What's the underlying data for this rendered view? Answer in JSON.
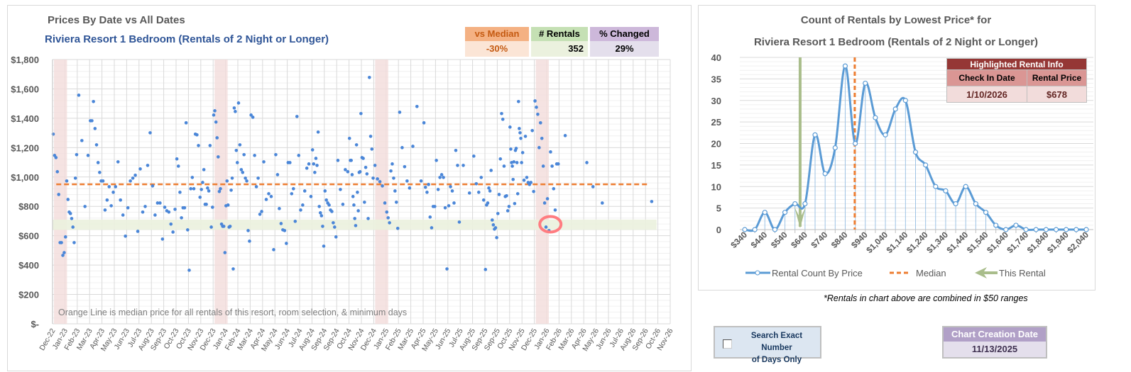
{
  "left_chart": {
    "title": "Prices By Date vs All Dates",
    "subtitle": "Riviera Resort 1 Bedroom (Rentals of 2 Night or Longer)",
    "footnote": "Orange Line is median price for all rentals of this resort, room selection, & minimum days",
    "stats": [
      {
        "label": "vs Median",
        "value": "-30%",
        "header_color": "#F4B183",
        "value_color": "#FBE5D6",
        "text_color": "#C55A11"
      },
      {
        "label": "# Rentals",
        "value": "352",
        "header_color": "#C5E0B4",
        "value_color": "#EBF1DE",
        "text_color": "#000000"
      },
      {
        "label": "% Changed",
        "value": "29%",
        "header_color": "#CDB8DA",
        "value_color": "#E4DFEC",
        "text_color": "#000000"
      }
    ]
  },
  "chart_data": [
    {
      "type": "scatter",
      "title": "Prices By Date vs All Dates",
      "ylim": [
        0,
        1800
      ],
      "y_ticks": [
        "$-",
        "$200",
        "$400",
        "$600",
        "$800",
        "$1,000",
        "$1,200",
        "$1,400",
        "$1,600",
        "$1,800"
      ],
      "x_ticks": [
        "Dec-22",
        "Jan-23",
        "Feb-23",
        "Mar-23",
        "Apr-23",
        "May-23",
        "Jun-23",
        "Jul-23",
        "Aug-23",
        "Sep-23",
        "Oct-23",
        "Oct-23",
        "Nov-23",
        "Dec-23",
        "Jan-24",
        "Feb-24",
        "Mar-24",
        "Apr-24",
        "May-24",
        "Jun-24",
        "Jul-24",
        "Aug-24",
        "Sep-24",
        "Sep-24",
        "Oct-24",
        "Nov-24",
        "Dec-24",
        "Jan-25",
        "Feb-25",
        "Mar-25",
        "Apr-25",
        "May-25",
        "Jun-25",
        "Jul-25",
        "Aug-25",
        "Sep-25",
        "Sep-25",
        "Oct-25",
        "Nov-25",
        "Dec-25",
        "Jan-26",
        "Feb-26",
        "Mar-26",
        "Apr-26",
        "May-26",
        "Jun-26",
        "Jul-26",
        "Aug-26",
        "Sep-26",
        "Oct-26",
        "Nov-26"
      ],
      "grid": true,
      "median_price": 950,
      "highlight_price_band": [
        640,
        710
      ],
      "holiday_bands": [
        [
          "Dec-22",
          "Jan-23"
        ],
        [
          "Dec-23",
          "Jan-24"
        ],
        [
          "Dec-24",
          "Jan-25"
        ],
        [
          "Dec-25",
          "Jan-26"
        ]
      ],
      "highlighted_point": {
        "date": "1/10/2026",
        "price": 678
      },
      "point_color": "#4A86D8",
      "median_color": "#ED7D31",
      "points_by_tick_interval": [
        [
          1292,
          1147,
          1132,
          1036,
          881,
          553,
          553,
          466,
          485
        ],
        [
          592,
          973,
          847,
          761,
          751,
          717,
          659,
          553,
          992,
          1152
        ],
        [
          1557,
          1248,
          799,
          1147
        ],
        [
          1383,
          1383,
          1514,
          1330,
          1219,
          1098,
          1031,
          973
        ],
        [
          973,
          775,
          843,
          934,
          804,
          896
        ],
        [
          934,
          1103,
          843,
          741,
          597
        ],
        [
          790,
          973,
          992,
          1012,
          630
        ],
        [
          1055,
          761,
          799,
          1079,
          1301
        ],
        [
          939,
          741,
          823,
          823,
          577
        ],
        [
          794,
          770,
          761,
          679,
          625,
          780
        ],
        [
          1123,
          1074,
          896,
          722,
          790,
          790,
          1369,
          640
        ],
        [
          365,
          920,
          997,
          920,
          1292,
          1287,
          1214,
          862
        ],
        [
          915,
          963,
          1050,
          814,
          814,
          925,
          905,
          1214,
          659,
          794
        ],
        [
          1422,
          1451,
          1374,
          1267,
          1137,
          901,
          920,
          679,
          664,
          664,
          485
        ],
        [
          804,
          973,
          809,
          659,
          664,
          910,
          992,
          374,
          1470,
          1446,
          1181,
          1098
        ],
        [
          1504,
          1219,
          1050,
          1031,
          1152,
          992,
          973,
          635,
          563
        ],
        [
          1422,
          1407,
          1147,
          934,
          992,
          746,
          765
        ],
        [
          1103,
          847,
          886,
          867,
          505
        ],
        [
          1152,
          1016,
          785,
          683,
          640,
          635,
          548
        ],
        [
          1098,
          1098,
          886,
          920,
          698,
          1412,
          1147
        ],
        [
          775,
          809,
          905,
          1060,
          1089,
          867
        ],
        [
          1185,
          1089,
          1031,
          1127,
          1079,
          1306,
          799,
          756,
          736,
          664,
          529
        ],
        [
          905,
          843,
          823,
          809,
          775,
          765,
          688,
          659,
          592
        ],
        [
          1113,
          915,
          814,
          1050,
          1036
        ],
        [
          1263,
          1113,
          1113,
          1016,
          867,
          809,
          717,
          669,
          1219,
          896,
          770,
          1031,
          1036,
          1432
        ],
        [
          1132,
          1127,
          828,
          1065,
          1021,
          717,
          1678,
          1277,
          1190,
          992
        ],
        [
          1079,
          987,
          968,
          939,
          823
        ],
        [
          761,
          722,
          688,
          1041,
          1089,
          992,
          905,
          828,
          650
        ],
        [
          1441,
          1200,
          1070,
          973,
          925
        ],
        [
          1209,
          1480,
          973
        ],
        [
          1369,
          930,
          896,
          949,
          727,
          654,
          799,
          799
        ],
        [
          1113,
          915,
          997,
          1016,
          997,
          790,
          374
        ],
        [
          804,
          934,
          905,
          823,
          1181,
          1079,
          693
        ],
        [
          1079,
          891
        ],
        [
          1142,
          954,
          896,
          997,
          843
        ],
        [
          370,
          809,
          823,
          925,
          905,
          1045,
          707,
          674,
          645,
          654,
          587
        ],
        [
          751,
          881,
          1123,
          1432,
          1393,
          1074,
          867,
          872,
          770,
          799
        ],
        [
          1340,
          1190,
          1098,
          1074,
          983,
          1103,
          819,
          1181,
          1195,
          1098,
          886,
          1514,
          1330,
          1301,
          1263,
          1098
        ],
        [
          1166,
          978,
          1277,
          997,
          963,
          949,
          963,
          1316,
          901
        ],
        [
          1518,
          1475,
          1427,
          1200,
          1369,
          1263,
          1074,
          823,
          659
        ],
        [
          852,
          635,
          1171,
          1074,
          920,
          775,
          1089,
          1089
        ],
        [
          1282
        ],
        [],
        [
          1098,
          934
        ],
        [
          823
        ],
        [],
        [],
        [],
        [
          833
        ],
        []
      ]
    },
    {
      "type": "line",
      "title": "Count of Rentals by Lowest Price* for",
      "subtitle": "Riviera Resort 1 Bedroom (Rentals of 2 Night or Longer)",
      "ylim": [
        0,
        40
      ],
      "y_ticks": [
        "0",
        "5",
        "10",
        "15",
        "20",
        "25",
        "30",
        "35",
        "40"
      ],
      "x": [
        340,
        390,
        440,
        490,
        540,
        590,
        640,
        690,
        740,
        790,
        840,
        890,
        940,
        990,
        1040,
        1090,
        1140,
        1190,
        1240,
        1290,
        1340,
        1390,
        1440,
        1490,
        1540,
        1590,
        1640,
        1690,
        1740,
        1790,
        1840,
        1890,
        1940,
        1990,
        2040
      ],
      "x_tick_labels": [
        "$340",
        "$440",
        "$540",
        "$640",
        "$740",
        "$840",
        "$940",
        "$1,040",
        "$1,140",
        "$1,240",
        "$1,340",
        "$1,440",
        "$1,540",
        "$1,640",
        "$1,740",
        "$1,840",
        "$1,940",
        "$2,040"
      ],
      "series": [
        {
          "name": "Rental Count By Price",
          "color": "#5B9BD5",
          "values": [
            0,
            0,
            4,
            0,
            4,
            6,
            6,
            22,
            13,
            19,
            38,
            20,
            34,
            26,
            22,
            28,
            30,
            18,
            15,
            10,
            9,
            6,
            10,
            6,
            4,
            1,
            0,
            1,
            0,
            0,
            0,
            0,
            0,
            0,
            0
          ]
        }
      ],
      "median": {
        "name": "Median",
        "value": 950,
        "color": "#ED7D31"
      },
      "this_rental": {
        "name": "This Rental",
        "value": 678,
        "color": "#A9BD8B"
      },
      "legend": "bottom",
      "grid": true
    }
  ],
  "highlight_table": {
    "title": "Highlighted Rental Info",
    "col1": "Check In Date",
    "col2": "Rental Price",
    "date": "1/10/2026",
    "price": "$678"
  },
  "right_note": "*Rentals in chart above are combined in $50 ranges",
  "checkbox": {
    "line1": "Search Exact Number",
    "line2": "of Days Only",
    "checked": false
  },
  "creation": {
    "label": "Chart Creation Date",
    "value": "11/13/2025"
  }
}
